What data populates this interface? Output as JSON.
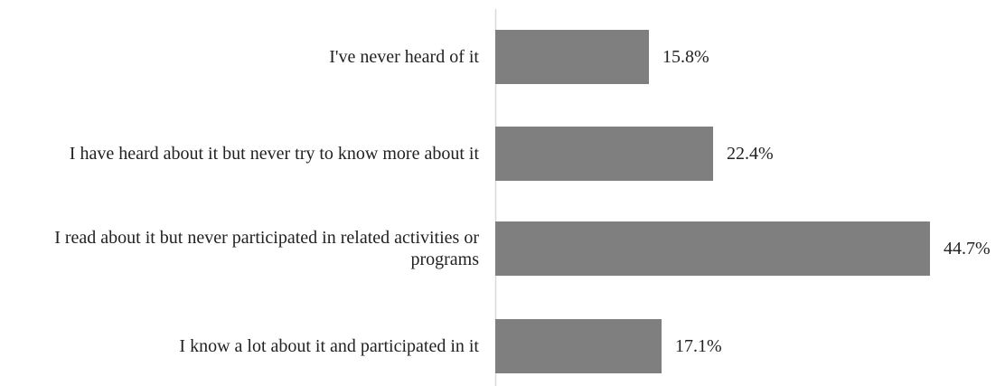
{
  "chart_data": {
    "type": "barh",
    "categories": [
      "I've never heard of it",
      "I have heard about it but never try to know more about it",
      "I read about it but never participated in related activities or programs",
      "I know a lot about it and participated in it"
    ],
    "values": [
      15.8,
      22.4,
      44.7,
      17.1
    ],
    "value_labels": [
      "15.8%",
      "22.4%",
      "44.7%",
      "17.1%"
    ],
    "color": "#7f7f7f"
  }
}
